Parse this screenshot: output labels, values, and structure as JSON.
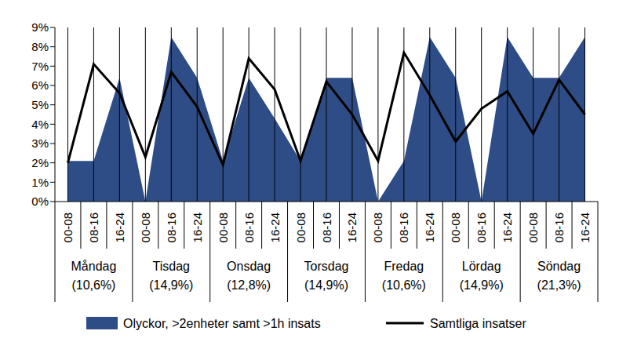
{
  "chart_data": {
    "type": "area_line",
    "categories": [
      "00-08",
      "08-16",
      "16-24",
      "00-08",
      "08-16",
      "16-24",
      "00-08",
      "08-16",
      "16-24",
      "00-08",
      "08-16",
      "16-24",
      "00-08",
      "08-16",
      "16-24",
      "00-08",
      "08-16",
      "16-24",
      "00-08",
      "08-16",
      "16-24"
    ],
    "groups": [
      {
        "name": "Måndag",
        "value": 10.6,
        "label": "(10,6%)"
      },
      {
        "name": "Tisdag",
        "value": 14.9,
        "label": "(14,9%)"
      },
      {
        "name": "Onsdag",
        "value": 12.8,
        "label": "(12,8%)"
      },
      {
        "name": "Torsdag",
        "value": 14.9,
        "label": "(14,9%)"
      },
      {
        "name": "Fredag",
        "value": 10.6,
        "label": "(10,6%)"
      },
      {
        "name": "Lördag",
        "value": 14.9,
        "label": "(14,9%)"
      },
      {
        "name": "Söndag",
        "value": 21.3,
        "label": "(21,3%)"
      }
    ],
    "series": [
      {
        "name": "Olyckor, >2enheter samt >1h insats",
        "type": "area",
        "color": "#2e4d86",
        "values": [
          2.1,
          2.1,
          6.4,
          0,
          8.5,
          6.4,
          2.1,
          6.4,
          4.3,
          2.1,
          6.4,
          6.4,
          0,
          2.1,
          8.5,
          6.4,
          0,
          8.5,
          6.4,
          6.4,
          8.5
        ]
      },
      {
        "name": "Samtliga insatser",
        "type": "line",
        "color": "#000000",
        "values": [
          2.0,
          7.1,
          5.6,
          2.3,
          6.7,
          4.9,
          1.9,
          7.4,
          5.8,
          2.1,
          6.2,
          4.5,
          2.1,
          7.7,
          5.5,
          3.1,
          4.8,
          5.7,
          3.5,
          6.3,
          4.5
        ]
      }
    ],
    "ylim": [
      0,
      9
    ],
    "yticks": [
      {
        "value": 0,
        "label": "0%"
      },
      {
        "value": 1,
        "label": "1%"
      },
      {
        "value": 2,
        "label": "2%"
      },
      {
        "value": 3,
        "label": "3%"
      },
      {
        "value": 4,
        "label": "4%"
      },
      {
        "value": 5,
        "label": "5%"
      },
      {
        "value": 6,
        "label": "6%"
      },
      {
        "value": 7,
        "label": "7%"
      },
      {
        "value": 8,
        "label": "8%"
      },
      {
        "value": 9,
        "label": "9%"
      }
    ],
    "grid": true
  }
}
